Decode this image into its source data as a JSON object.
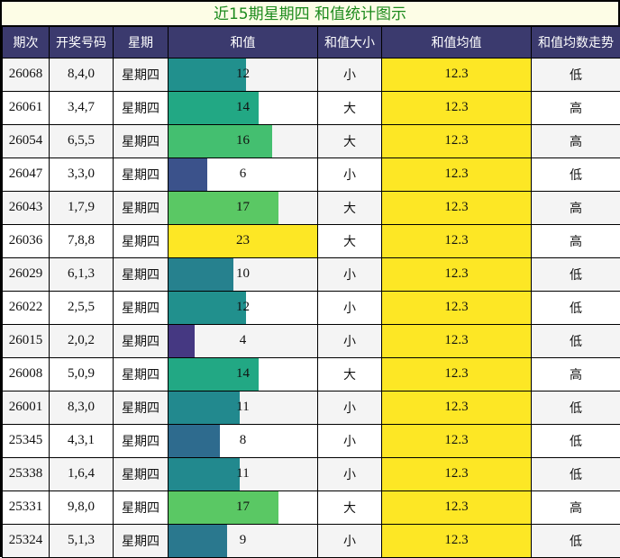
{
  "title": "近15期星期四 和值统计图示",
  "headers": [
    "期次",
    "开奖号码",
    "星期",
    "和值",
    "和值大小",
    "和值均值",
    "和值均数走势"
  ],
  "colors": {
    "header_bg": "#3b3a6e",
    "title_bg": "#fdfde6",
    "title_text": "#1c8a1c",
    "avg_bg": "#fde725",
    "row_odd": "#f4f4f4",
    "row_even": "#ffffff"
  },
  "rows": [
    {
      "period": "26068",
      "numbers": "8,4,0",
      "weekday": "星期四",
      "sum": "12",
      "size": "小",
      "avg": "12.3",
      "trend": "低",
      "bar_color": "#21908d"
    },
    {
      "period": "26061",
      "numbers": "3,4,7",
      "weekday": "星期四",
      "sum": "14",
      "size": "大",
      "avg": "12.3",
      "trend": "高",
      "bar_color": "#22a884"
    },
    {
      "period": "26054",
      "numbers": "6,5,5",
      "weekday": "星期四",
      "sum": "16",
      "size": "大",
      "avg": "12.3",
      "trend": "高",
      "bar_color": "#44bf70"
    },
    {
      "period": "26047",
      "numbers": "3,3,0",
      "weekday": "星期四",
      "sum": "6",
      "size": "小",
      "avg": "12.3",
      "trend": "低",
      "bar_color": "#3b528b"
    },
    {
      "period": "26043",
      "numbers": "1,7,9",
      "weekday": "星期四",
      "sum": "17",
      "size": "大",
      "avg": "12.3",
      "trend": "高",
      "bar_color": "#5ac864"
    },
    {
      "period": "26036",
      "numbers": "7,8,8",
      "weekday": "星期四",
      "sum": "23",
      "size": "大",
      "avg": "12.3",
      "trend": "高",
      "bar_color": "#fde725"
    },
    {
      "period": "26029",
      "numbers": "6,1,3",
      "weekday": "星期四",
      "sum": "10",
      "size": "小",
      "avg": "12.3",
      "trend": "低",
      "bar_color": "#26818e"
    },
    {
      "period": "26022",
      "numbers": "2,5,5",
      "weekday": "星期四",
      "sum": "12",
      "size": "小",
      "avg": "12.3",
      "trend": "低",
      "bar_color": "#21908d"
    },
    {
      "period": "26015",
      "numbers": "2,0,2",
      "weekday": "星期四",
      "sum": "4",
      "size": "小",
      "avg": "12.3",
      "trend": "低",
      "bar_color": "#453882"
    },
    {
      "period": "26008",
      "numbers": "5,0,9",
      "weekday": "星期四",
      "sum": "14",
      "size": "大",
      "avg": "12.3",
      "trend": "高",
      "bar_color": "#22a884"
    },
    {
      "period": "26001",
      "numbers": "8,3,0",
      "weekday": "星期四",
      "sum": "11",
      "size": "小",
      "avg": "12.3",
      "trend": "低",
      "bar_color": "#22898e"
    },
    {
      "period": "25345",
      "numbers": "4,3,1",
      "weekday": "星期四",
      "sum": "8",
      "size": "小",
      "avg": "12.3",
      "trend": "低",
      "bar_color": "#2e6b8e"
    },
    {
      "period": "25338",
      "numbers": "1,6,4",
      "weekday": "星期四",
      "sum": "11",
      "size": "小",
      "avg": "12.3",
      "trend": "低",
      "bar_color": "#22898e"
    },
    {
      "period": "25331",
      "numbers": "9,8,0",
      "weekday": "星期四",
      "sum": "17",
      "size": "大",
      "avg": "12.3",
      "trend": "高",
      "bar_color": "#5ac864"
    },
    {
      "period": "25324",
      "numbers": "5,1,3",
      "weekday": "星期四",
      "sum": "9",
      "size": "小",
      "avg": "12.3",
      "trend": "低",
      "bar_color": "#2a788e"
    }
  ],
  "chart_data": {
    "type": "table",
    "title": "近15期星期四 和值统计图示",
    "columns": [
      "期次",
      "开奖号码",
      "星期",
      "和值",
      "和值大小",
      "和值均值",
      "和值均数走势"
    ],
    "categories": [
      "26068",
      "26061",
      "26054",
      "26047",
      "26043",
      "26036",
      "26029",
      "26022",
      "26015",
      "26008",
      "26001",
      "25345",
      "25338",
      "25331",
      "25324"
    ],
    "series": [
      {
        "name": "和值",
        "values": [
          12,
          14,
          16,
          6,
          17,
          23,
          10,
          12,
          4,
          14,
          11,
          8,
          11,
          17,
          9
        ]
      },
      {
        "name": "和值均值",
        "values": [
          12.3,
          12.3,
          12.3,
          12.3,
          12.3,
          12.3,
          12.3,
          12.3,
          12.3,
          12.3,
          12.3,
          12.3,
          12.3,
          12.3,
          12.3
        ]
      }
    ],
    "numbers": [
      "8,4,0",
      "3,4,7",
      "6,5,5",
      "3,3,0",
      "1,7,9",
      "7,8,8",
      "6,1,3",
      "2,5,5",
      "2,0,2",
      "5,0,9",
      "8,3,0",
      "4,3,1",
      "1,6,4",
      "9,8,0",
      "5,1,3"
    ],
    "size": [
      "小",
      "大",
      "大",
      "小",
      "大",
      "大",
      "小",
      "小",
      "小",
      "大",
      "小",
      "小",
      "小",
      "大",
      "小"
    ],
    "trend": [
      "低",
      "高",
      "高",
      "低",
      "高",
      "高",
      "低",
      "低",
      "低",
      "高",
      "低",
      "低",
      "低",
      "高",
      "低"
    ],
    "bar_max": 23,
    "bar_colormap": "viridis"
  }
}
